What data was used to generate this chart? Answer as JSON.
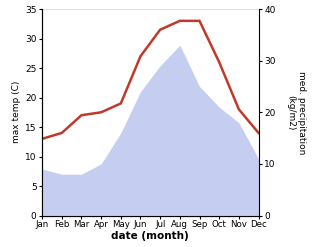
{
  "months": [
    "Jan",
    "Feb",
    "Mar",
    "Apr",
    "May",
    "Jun",
    "Jul",
    "Aug",
    "Sep",
    "Oct",
    "Nov",
    "Dec"
  ],
  "temperature": [
    13,
    14,
    17,
    17.5,
    19,
    27,
    31.5,
    33,
    33,
    26,
    18,
    14
  ],
  "precipitation": [
    9,
    8,
    8,
    10,
    16,
    24,
    29,
    33,
    25,
    21,
    18,
    11
  ],
  "temp_color": "#c0392b",
  "precip_fill_color": "#c5cef0",
  "ylabel_left": "max temp (C)",
  "ylabel_right": "med. precipitation  (kg/m2)",
  "xlabel": "date (month)",
  "ylim_left": [
    0,
    35
  ],
  "ylim_right": [
    0,
    40
  ],
  "yticks_left": [
    0,
    5,
    10,
    15,
    20,
    25,
    30,
    35
  ],
  "yticks_right": [
    0,
    10,
    20,
    30,
    40
  ],
  "background_color": "#ffffff",
  "temp_linewidth": 1.8
}
